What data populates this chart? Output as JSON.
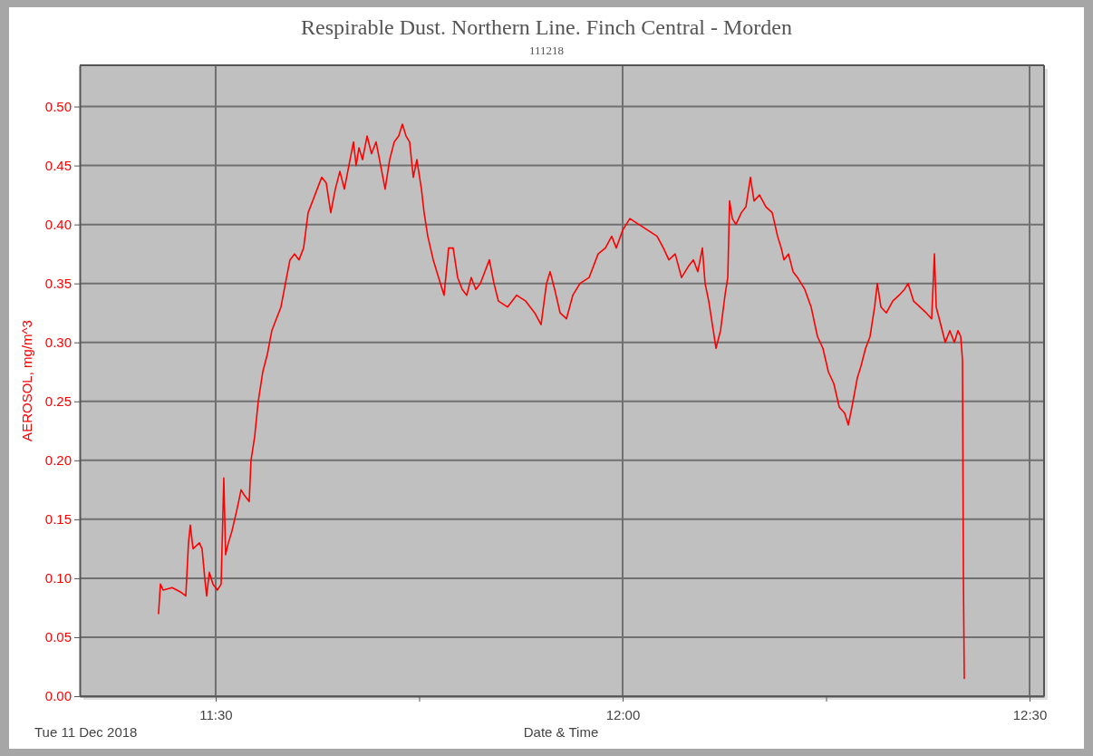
{
  "chart_data": {
    "type": "line",
    "title": "Respirable Dust. Northern Line. Finch Central - Morden",
    "subtitle": "111218",
    "xlabel": "Date & Time",
    "ylabel": "AEROSOL, mg/m^3",
    "annotations": [
      "Tue 11 Dec 2018"
    ],
    "xlim": [
      11.333,
      12.5178
    ],
    "ylim": [
      0,
      0.535
    ],
    "xticks": [
      {
        "value": 11.5,
        "label": "11:30"
      },
      {
        "value": 11.75,
        "label": null
      },
      {
        "value": 12,
        "label": "12:00"
      },
      {
        "value": 12.25,
        "label": null
      },
      {
        "value": 12.5,
        "label": "12:30"
      }
    ],
    "yticks": [
      {
        "value": 0,
        "label": "0.00"
      },
      {
        "value": 0.05,
        "label": "0.05"
      },
      {
        "value": 0.1,
        "label": "0.10"
      },
      {
        "value": 0.15,
        "label": "0.15"
      },
      {
        "value": 0.2,
        "label": "0.20"
      },
      {
        "value": 0.25,
        "label": "0.25"
      },
      {
        "value": 0.3,
        "label": "0.30"
      },
      {
        "value": 0.35,
        "label": "0.35"
      },
      {
        "value": 0.4,
        "label": "0.40"
      },
      {
        "value": 0.45,
        "label": "0.45"
      },
      {
        "value": 0.5,
        "label": "0.50"
      }
    ],
    "grid": true,
    "marker": "none",
    "line_style": "solid",
    "series": [
      {
        "color": "#ff0000",
        "x": [
          11.4298,
          11.4321,
          11.4354,
          11.4465,
          11.4577,
          11.4633,
          11.4666,
          11.4688,
          11.4722,
          11.48,
          11.4833,
          11.4866,
          11.4889,
          11.4922,
          11.4967,
          11.5022,
          11.5067,
          11.51,
          11.5122,
          11.5156,
          11.52,
          11.5267,
          11.5312,
          11.5356,
          11.5412,
          11.5434,
          11.5479,
          11.5523,
          11.5579,
          11.5635,
          11.569,
          11.5746,
          11.5802,
          11.5857,
          11.5913,
          11.5969,
          11.6024,
          11.608,
          11.6136,
          11.6192,
          11.6247,
          11.6303,
          11.6359,
          11.6414,
          11.647,
          11.6526,
          11.6581,
          11.6637,
          11.6693,
          11.6726,
          11.676,
          11.6804,
          11.686,
          11.6915,
          11.6971,
          11.7027,
          11.7082,
          11.7138,
          11.7194,
          11.7249,
          11.7294,
          11.7339,
          11.7383,
          11.7428,
          11.7472,
          11.7528,
          11.7561,
          11.7606,
          11.7673,
          11.7739,
          11.7806,
          11.7862,
          11.7918,
          11.7973,
          11.8029,
          11.8085,
          11.814,
          11.8196,
          11.8252,
          11.8307,
          11.8363,
          11.8419,
          11.8474,
          11.8586,
          11.8697,
          11.8809,
          11.892,
          11.8998,
          11.9065,
          11.9109,
          11.9165,
          11.9232,
          11.931,
          11.9388,
          11.9477,
          11.9588,
          11.9699,
          11.9788,
          11.9866,
          11.9922,
          12.0,
          12.0089,
          12.02,
          12.0312,
          12.0423,
          12.0501,
          12.0568,
          12.0646,
          12.0724,
          12.0813,
          12.0869,
          12.0924,
          12.098,
          12.1013,
          12.1058,
          12.1114,
          12.1147,
          12.1203,
          12.1258,
          12.1292,
          12.1314,
          12.1348,
          12.1392,
          12.1459,
          12.1515,
          12.157,
          12.1615,
          12.1682,
          12.176,
          12.1838,
          12.1904,
          12.1949,
          12.1982,
          12.2038,
          12.2094,
          12.2149,
          12.2238,
          12.2316,
          12.2394,
          12.2461,
          12.2528,
          12.2595,
          12.2662,
          12.2728,
          12.2773,
          12.2817,
          12.2884,
          12.2929,
          12.2985,
          12.304,
          12.3096,
          12.3129,
          12.3174,
          12.3241,
          12.3319,
          12.3397,
          12.3463,
          12.3508,
          12.3575,
          12.3653,
          12.3731,
          12.3797,
          12.3831,
          12.3853,
          12.3909,
          12.3964,
          12.402,
          12.4076,
          12.412,
          12.4154,
          12.4176,
          12.4187,
          12.4198
        ],
        "values": [
          0.07,
          0.095,
          0.09,
          0.092,
          0.088,
          0.085,
          0.13,
          0.145,
          0.125,
          0.13,
          0.125,
          0.1,
          0.085,
          0.105,
          0.095,
          0.09,
          0.095,
          0.185,
          0.12,
          0.13,
          0.14,
          0.16,
          0.175,
          0.17,
          0.165,
          0.2,
          0.22,
          0.25,
          0.275,
          0.29,
          0.31,
          0.32,
          0.33,
          0.35,
          0.37,
          0.375,
          0.37,
          0.38,
          0.41,
          0.42,
          0.43,
          0.44,
          0.435,
          0.41,
          0.43,
          0.445,
          0.43,
          0.45,
          0.47,
          0.45,
          0.465,
          0.455,
          0.475,
          0.46,
          0.47,
          0.45,
          0.43,
          0.455,
          0.47,
          0.475,
          0.485,
          0.475,
          0.47,
          0.44,
          0.455,
          0.43,
          0.41,
          0.39,
          0.37,
          0.355,
          0.34,
          0.38,
          0.38,
          0.355,
          0.345,
          0.34,
          0.355,
          0.345,
          0.35,
          0.36,
          0.37,
          0.35,
          0.335,
          0.33,
          0.34,
          0.335,
          0.325,
          0.315,
          0.35,
          0.36,
          0.345,
          0.325,
          0.32,
          0.34,
          0.35,
          0.355,
          0.375,
          0.38,
          0.39,
          0.38,
          0.395,
          0.405,
          0.4,
          0.395,
          0.39,
          0.38,
          0.37,
          0.375,
          0.355,
          0.365,
          0.37,
          0.36,
          0.38,
          0.35,
          0.335,
          0.31,
          0.295,
          0.31,
          0.34,
          0.355,
          0.42,
          0.405,
          0.4,
          0.41,
          0.415,
          0.44,
          0.42,
          0.425,
          0.415,
          0.41,
          0.39,
          0.38,
          0.37,
          0.375,
          0.36,
          0.355,
          0.345,
          0.33,
          0.305,
          0.295,
          0.275,
          0.265,
          0.245,
          0.24,
          0.23,
          0.245,
          0.27,
          0.28,
          0.295,
          0.305,
          0.33,
          0.35,
          0.33,
          0.325,
          0.335,
          0.34,
          0.345,
          0.35,
          0.335,
          0.33,
          0.325,
          0.32,
          0.375,
          0.33,
          0.315,
          0.3,
          0.31,
          0.3,
          0.31,
          0.305,
          0.285,
          0.1,
          0.015
        ]
      }
    ]
  }
}
